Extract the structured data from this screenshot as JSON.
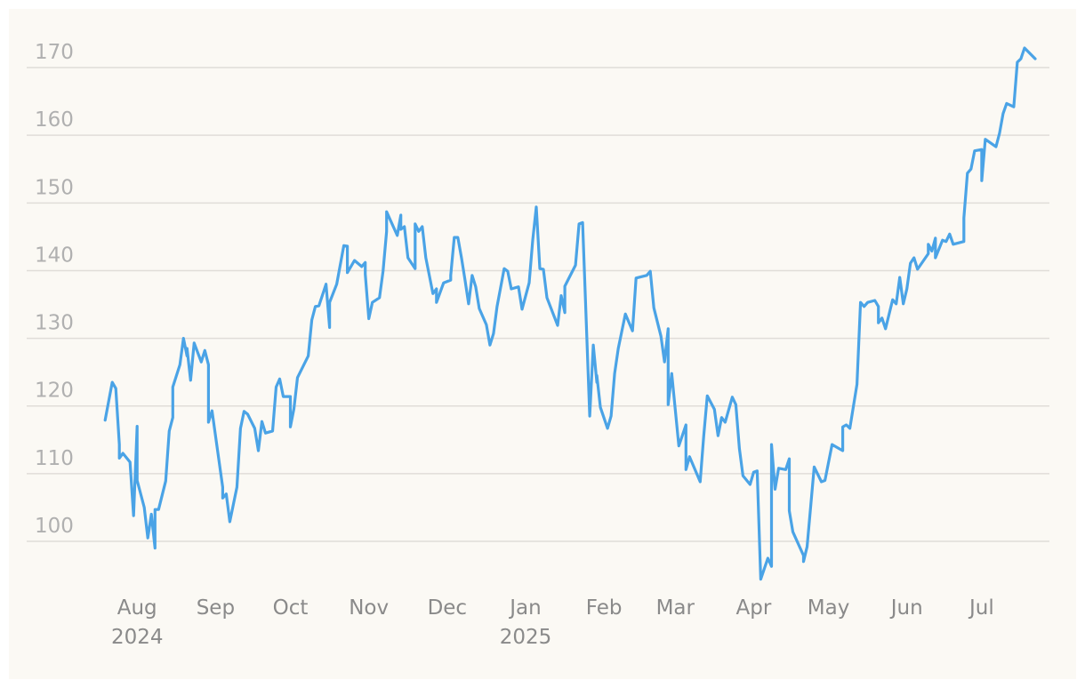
{
  "chart_data": {
    "type": "line",
    "color": "#4aa3e6",
    "grid": true,
    "x": [
      0,
      2,
      3,
      4,
      4,
      5,
      7,
      8,
      9,
      9,
      11,
      12,
      13,
      14,
      14,
      15,
      17,
      18,
      19,
      19,
      21,
      22,
      23,
      23,
      24,
      25,
      27,
      28,
      29,
      29,
      30,
      33,
      33,
      34,
      35,
      37,
      38,
      39,
      40,
      42,
      43,
      44,
      45,
      47,
      48,
      49,
      50,
      52,
      52,
      53,
      54,
      57,
      58,
      58,
      59,
      60,
      62,
      63,
      63,
      65,
      67,
      68,
      68,
      70,
      72,
      73,
      73,
      74,
      75,
      77,
      78,
      79,
      79,
      82,
      83,
      83,
      84,
      85,
      87,
      87,
      88,
      89,
      90,
      92,
      93,
      93,
      95,
      97,
      97,
      98,
      99,
      100,
      101,
      102,
      103,
      104,
      105,
      107,
      108,
      109,
      110,
      112,
      113,
      114,
      116,
      117,
      119,
      120,
      121,
      122,
      123,
      124,
      127,
      128,
      129,
      129,
      132,
      133,
      134,
      136,
      137,
      138,
      138,
      139,
      141,
      142,
      143,
      144,
      146,
      148,
      149,
      152,
      153,
      154,
      156,
      157,
      158,
      158,
      159,
      161,
      163,
      163,
      164,
      167,
      168,
      168,
      169,
      171,
      172,
      173,
      174,
      176,
      177,
      178,
      179,
      181,
      182,
      183,
      184,
      186,
      187,
      187,
      188,
      189,
      191,
      192,
      192,
      193,
      196,
      196,
      197,
      199,
      201,
      202,
      204,
      206,
      207,
      207,
      208,
      209,
      211,
      212,
      213,
      214,
      216,
      217,
      217,
      218,
      219,
      221,
      222,
      223,
      224,
      225,
      226,
      227,
      228,
      231,
      231,
      232,
      233,
      233,
      235,
      236,
      237,
      238,
      241,
      241,
      242,
      243,
      244,
      246,
      246,
      247,
      250,
      251,
      252,
      253,
      255,
      256,
      257,
      258,
      261
    ],
    "values": [
      117.9,
      123.5,
      122.6,
      114.3,
      112.3,
      113,
      111.7,
      103.8,
      117,
      109,
      105,
      100.5,
      104,
      99,
      104.7,
      104.7,
      108.9,
      116.3,
      118.3,
      122.8,
      126.1,
      130,
      127.4,
      128.5,
      123.8,
      129.3,
      126.5,
      128.2,
      126.1,
      117.6,
      119.3,
      108,
      106.4,
      107,
      102.9,
      108,
      116.7,
      119.2,
      118.8,
      116.7,
      113.4,
      117.7,
      116,
      116.3,
      122.8,
      124,
      121.4,
      121.4,
      116.9,
      119.6,
      124.2,
      127.4,
      132.7,
      132.7,
      134.7,
      134.8,
      138,
      131.6,
      135.3,
      138,
      143.7,
      143.6,
      139.7,
      141.5,
      140.6,
      141.2,
      139.5,
      132.9,
      135.3,
      136,
      139.9,
      145.8,
      148.7,
      145.2,
      148.2,
      146.1,
      146.5,
      141.9,
      140.3,
      146.9,
      145.8,
      146.5,
      141.9,
      136.6,
      137.3,
      135.3,
      138.2,
      138.6,
      139.3,
      144.9,
      144.9,
      141.9,
      138.6,
      135.1,
      139.3,
      137.6,
      134.4,
      132,
      129,
      130.7,
      134.7,
      140.3,
      139.9,
      137.3,
      137.6,
      134.3,
      138.2,
      144.5,
      149.4,
      140.3,
      140.2,
      136,
      131.9,
      136.3,
      133.8,
      137.7,
      140.8,
      146.9,
      147.1,
      118.5,
      129,
      123.5,
      124.5,
      119.8,
      116.7,
      118.5,
      124.8,
      128.5,
      133.6,
      131.1,
      138.9,
      139.3,
      139.9,
      134.5,
      130.3,
      126.5,
      131.4,
      120.2,
      124.8,
      114.1,
      117.2,
      110.6,
      112.5,
      108.8,
      115.6,
      115.6,
      121.5,
      119.5,
      115.6,
      118.3,
      117.6,
      121.3,
      120.2,
      113.7,
      109.7,
      108.4,
      110.2,
      110.4,
      94.4,
      97.5,
      96.3,
      114.3,
      107.7,
      110.8,
      110.6,
      112.2,
      104.5,
      101.4,
      97.9,
      97,
      99.2,
      111,
      108.8,
      109,
      114.3,
      113.7,
      113.4,
      116.9,
      117.2,
      116.7,
      123.2,
      135.3,
      134.7,
      135.3,
      135.6,
      134.7,
      132.3,
      133,
      131.4,
      135.7,
      135.1,
      139,
      135.1,
      137.3,
      141.1,
      141.9,
      140.2,
      142.5,
      143.9,
      142.9,
      144.8,
      141.9,
      144.5,
      144.3,
      145.4,
      143.9,
      144.3,
      147.8,
      154.4,
      155,
      157.7,
      157.9,
      153.3,
      159.4,
      158.3,
      160.3,
      163.2,
      164.7,
      164.2,
      170.8,
      171.3,
      172.9,
      171.3
    ],
    "xlim": [
      -22,
      265
    ],
    "xticks": [
      {
        "value": 9,
        "label": "Aug"
      },
      {
        "value": 31,
        "label": "Sep"
      },
      {
        "value": 52,
        "label": "Oct"
      },
      {
        "value": 74,
        "label": "Nov"
      },
      {
        "value": 96,
        "label": "Dec"
      },
      {
        "value": 118,
        "label": "Jan"
      },
      {
        "value": 140,
        "label": "Feb"
      },
      {
        "value": 160,
        "label": "Mar"
      },
      {
        "value": 182,
        "label": "Apr"
      },
      {
        "value": 203,
        "label": "May"
      },
      {
        "value": 225,
        "label": "Jun"
      },
      {
        "value": 246,
        "label": "Jul"
      }
    ],
    "x_year_labels": [
      {
        "value": 9,
        "label": "2024"
      },
      {
        "value": 118,
        "label": "2025"
      }
    ],
    "ylim": [
      93,
      173
    ],
    "yticks": [
      100,
      110,
      120,
      130,
      140,
      150,
      160,
      170
    ]
  }
}
